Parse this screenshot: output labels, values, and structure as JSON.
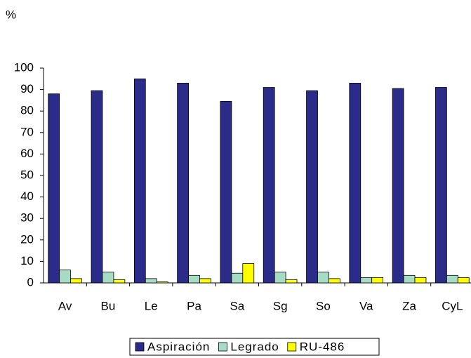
{
  "chart_data": {
    "type": "bar",
    "y_label": "%",
    "categories": [
      "Av",
      "Bu",
      "Le",
      "Pa",
      "Sa",
      "Sg",
      "So",
      "Va",
      "Za",
      "CyL"
    ],
    "series": [
      {
        "name": "Aspiración",
        "color": "#2b2b8a",
        "values": [
          88,
          89.5,
          95,
          93,
          84.5,
          91,
          89.5,
          93,
          90.5,
          91
        ]
      },
      {
        "name": "Legrado",
        "color": "#a6dcc4",
        "values": [
          6,
          5,
          2,
          3.5,
          4.5,
          5,
          5,
          2.5,
          3.5,
          3.5
        ]
      },
      {
        "name": "RU-486",
        "color": "#ffff00",
        "values": [
          2,
          1.5,
          0.5,
          2,
          9,
          1.5,
          2,
          2.5,
          2.5,
          2.5
        ]
      }
    ],
    "ylim": [
      0,
      100
    ],
    "yticks": [
      0,
      10,
      20,
      30,
      40,
      50,
      60,
      70,
      80,
      90,
      100
    ],
    "grid": false,
    "legend": "bottom"
  }
}
